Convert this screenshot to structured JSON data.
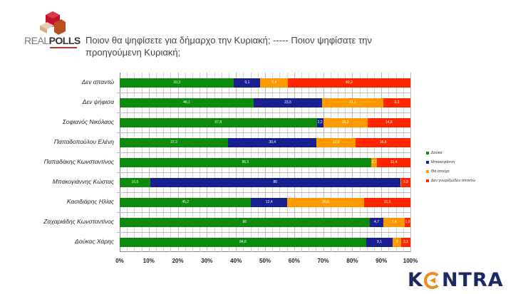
{
  "header": {
    "brand": "REALPOLLS",
    "brand_light": "REAL",
    "brand_bold": "POLLS",
    "title": "Ποιον θα ψηφίσετε για δήμαρχο την Κυριακή;  -----  Ποιον ψηφίσατε την προηγούμενη Κυριακή;"
  },
  "footer": {
    "brand": "KONTRA",
    "brand_k": "K",
    "brand_rest": "NTRA"
  },
  "colors": {
    "green": "#0e8a0e",
    "blue": "#1a1f8f",
    "orange": "#ff9900",
    "red": "#ff2600"
  },
  "chart_data": {
    "type": "bar",
    "orientation": "horizontal",
    "stacked": "percent",
    "title": "Ποιον θα ψηφίσετε για δήμαρχο την Κυριακή; ----- Ποιον ψηφίσατε την προηγούμενη Κυριακή;",
    "xlabel": "",
    "ylabel": "",
    "xlim": [
      0,
      100
    ],
    "xticks": [
      "0%",
      "10%",
      "20%",
      "30%",
      "40%",
      "50%",
      "60%",
      "70%",
      "80%",
      "90%",
      "100%"
    ],
    "grid": true,
    "legend_position": "right",
    "categories": [
      "Δεν απαντώ",
      "Δεν ψήφισα",
      "Σοφιανός Νικόλαος",
      "Παπαδοπούλου Ελένη",
      "Παπαδάκης Κωνσταντίνος",
      "Μπακογιάννης Κώστας",
      "Κασιδιάρης Ηλίας",
      "Ζαχαριάδης Κωνσταντίνος",
      "Δούκας Χάρης"
    ],
    "series": [
      {
        "name": "Δούκα",
        "color": "#0e8a0e",
        "values": [
          39.3,
          46.1,
          67.8,
          37.3,
          86.5,
          10.5,
          45.2,
          86,
          84.8
        ]
      },
      {
        "name": "Μπακογιάννη",
        "color": "#1a1f8f",
        "values": [
          9.1,
          23.5,
          2.2,
          30.4,
          0,
          86,
          12.4,
          4.7,
          9.1
        ]
      },
      {
        "name": "Θα απείχα",
        "color": "#ff9900",
        "values": [
          9.4,
          21.1,
          15.2,
          13.5,
          2.1,
          0.2,
          26.5,
          7.4,
          3.0
        ]
      },
      {
        "name": "Δεν γνωρίζω/Δεν απαντώ",
        "color": "#ff2600",
        "values": [
          42.2,
          9.3,
          14.8,
          18.8,
          11.4,
          3.3,
          15.9,
          1.9,
          3.1
        ]
      }
    ]
  }
}
